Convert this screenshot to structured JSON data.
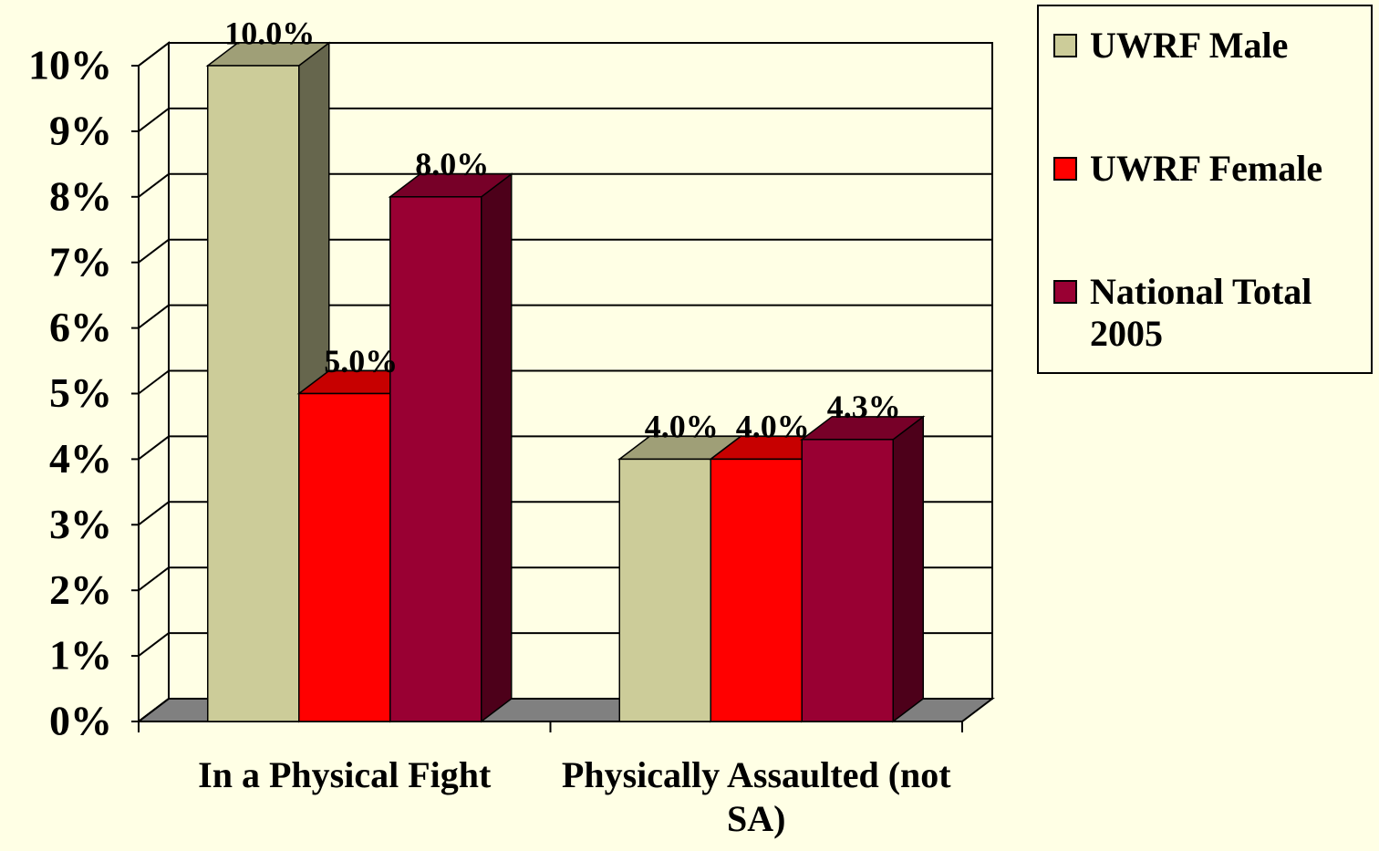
{
  "chart_data": {
    "type": "bar3d",
    "categories": [
      "In a Physical Fight",
      "Physically Assaulted (not SA)"
    ],
    "series": [
      {
        "name": "UWRF Male",
        "color": "#cccc99",
        "values": [
          10,
          4
        ],
        "value_labels": [
          "10.0%",
          "4.0%"
        ]
      },
      {
        "name": "UWRF Female",
        "color": "#ff0000",
        "values": [
          5,
          4
        ],
        "value_labels": [
          "5.0%",
          "4.0%"
        ]
      },
      {
        "name": "National Total 2005",
        "color": "#990033",
        "values": [
          8,
          4.3
        ],
        "value_labels": [
          "8.0%",
          "4.3%"
        ]
      }
    ],
    "ylim": [
      0,
      10
    ],
    "yticks": [
      {
        "value": 0,
        "label": "0%"
      },
      {
        "value": 1,
        "label": "1%"
      },
      {
        "value": 2,
        "label": "2%"
      },
      {
        "value": 3,
        "label": "3%"
      },
      {
        "value": 4,
        "label": "4%"
      },
      {
        "value": 5,
        "label": "5%"
      },
      {
        "value": 6,
        "label": "6%"
      },
      {
        "value": 7,
        "label": "7%"
      },
      {
        "value": 8,
        "label": "8%"
      },
      {
        "value": 9,
        "label": "9%"
      },
      {
        "value": 10,
        "label": "10%"
      }
    ],
    "grid": true
  }
}
